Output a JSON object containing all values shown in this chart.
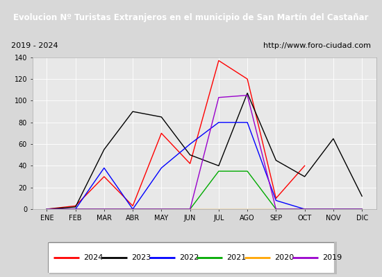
{
  "title": "Evolucion Nº Turistas Extranjeros en el municipio de San Martín del Castañar",
  "subtitle_left": "2019 - 2024",
  "subtitle_right": "http://www.foro-ciudad.com",
  "title_bg": "#4472c4",
  "title_color": "white",
  "months": [
    "ENE",
    "FEB",
    "MAR",
    "ABR",
    "MAY",
    "JUN",
    "JUL",
    "AGO",
    "SEP",
    "OCT",
    "NOV",
    "DIC"
  ],
  "ylim": [
    0,
    140
  ],
  "yticks": [
    0,
    20,
    40,
    60,
    80,
    100,
    120,
    140
  ],
  "series": {
    "2024": {
      "color": "#ff0000",
      "values": [
        0,
        3,
        30,
        3,
        70,
        42,
        137,
        120,
        10,
        40,
        null,
        null
      ]
    },
    "2023": {
      "color": "#000000",
      "values": [
        0,
        2,
        55,
        90,
        85,
        50,
        40,
        107,
        45,
        30,
        65,
        12
      ]
    },
    "2022": {
      "color": "#0000ff",
      "values": [
        0,
        0,
        38,
        0,
        38,
        60,
        80,
        80,
        8,
        0,
        0,
        0
      ]
    },
    "2021": {
      "color": "#00aa00",
      "values": [
        0,
        0,
        0,
        0,
        0,
        0,
        35,
        35,
        0,
        0,
        0,
        0
      ]
    },
    "2020": {
      "color": "#ffa500",
      "values": [
        0,
        0,
        0,
        0,
        0,
        0,
        0,
        0,
        0,
        0,
        0,
        0
      ]
    },
    "2019": {
      "color": "#9900cc",
      "values": [
        0,
        0,
        0,
        0,
        0,
        0,
        103,
        105,
        0,
        0,
        0,
        0
      ]
    }
  },
  "legend_order": [
    "2024",
    "2023",
    "2022",
    "2021",
    "2020",
    "2019"
  ],
  "bg_color": "#d8d8d8",
  "plot_bg": "#e8e8e8",
  "grid_color": "#ffffff",
  "outer_bg": "#c8c8c8"
}
